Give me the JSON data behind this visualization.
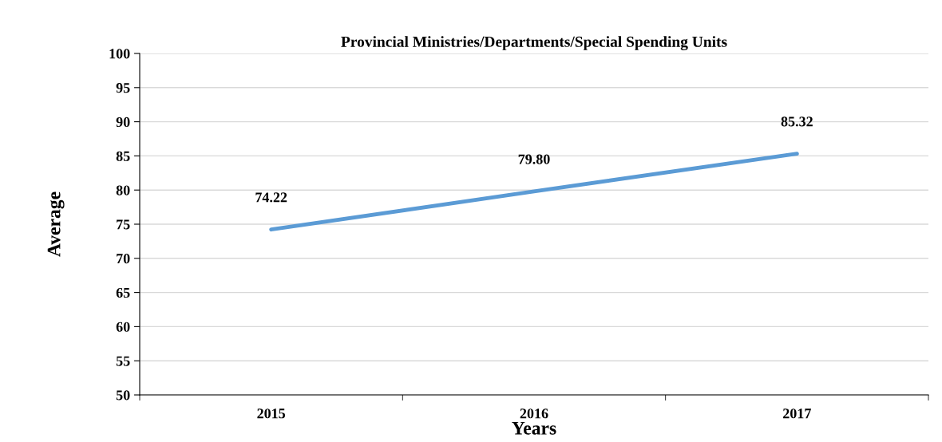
{
  "chart_data": {
    "type": "line",
    "title": "Provincial Ministries/Departments/Special Spending Units",
    "xlabel": "Years",
    "ylabel": "Average",
    "categories": [
      "2015",
      "2016",
      "2017"
    ],
    "series": [
      {
        "color": "#5b9bd5",
        "values": [
          74.22,
          79.8,
          85.32
        ],
        "value_labels": [
          "74.22",
          "79.80",
          "85.32"
        ]
      }
    ],
    "ylim": [
      50,
      100
    ],
    "yticks": [
      50,
      55,
      60,
      65,
      70,
      75,
      80,
      85,
      90,
      95,
      100
    ],
    "grid": "y",
    "legend": false,
    "marker": "none",
    "line_style": "solid"
  }
}
